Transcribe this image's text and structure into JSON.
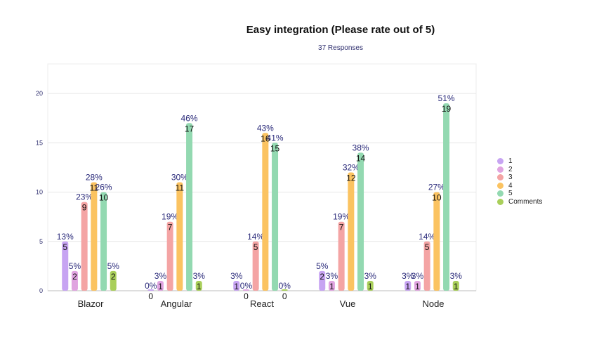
{
  "chart_data": {
    "type": "bar",
    "title": "Easy integration (Please rate out of 5)",
    "subtitle": "37 Responses",
    "categories": [
      "Blazor",
      "Angular",
      "React",
      "Vue",
      "Node"
    ],
    "series": [
      {
        "name": "1",
        "color": "#c7a4f2",
        "values": [
          5,
          0,
          1,
          2,
          1
        ],
        "labels": [
          "13%",
          "0%",
          "3%",
          "5%",
          "3%"
        ]
      },
      {
        "name": "2",
        "color": "#e0a4e0",
        "values": [
          2,
          1,
          0,
          1,
          1
        ],
        "labels": [
          "5%",
          "3%",
          "0%",
          "3%",
          "3%"
        ]
      },
      {
        "name": "3",
        "color": "#f4a4a4",
        "values": [
          9,
          7,
          5,
          7,
          5
        ],
        "labels": [
          "23%",
          "19%",
          "14%",
          "19%",
          "14%"
        ]
      },
      {
        "name": "4",
        "color": "#fbc361",
        "values": [
          11,
          11,
          16,
          12,
          10
        ],
        "labels": [
          "28%",
          "30%",
          "43%",
          "32%",
          "27%"
        ]
      },
      {
        "name": "5",
        "color": "#93d9b1",
        "values": [
          10,
          17,
          15,
          14,
          19
        ],
        "labels": [
          "26%",
          "46%",
          "41%",
          "38%",
          "51%"
        ]
      },
      {
        "name": "Comments",
        "color": "#a9cf5a",
        "values": [
          2,
          1,
          0,
          1,
          1
        ],
        "labels": [
          "5%",
          "3%",
          "0%",
          "3%",
          "3%"
        ]
      }
    ],
    "yticks": [
      0,
      5,
      10,
      15,
      20
    ],
    "ylim": [
      0,
      23
    ],
    "grid": true,
    "legend_position": "right"
  }
}
